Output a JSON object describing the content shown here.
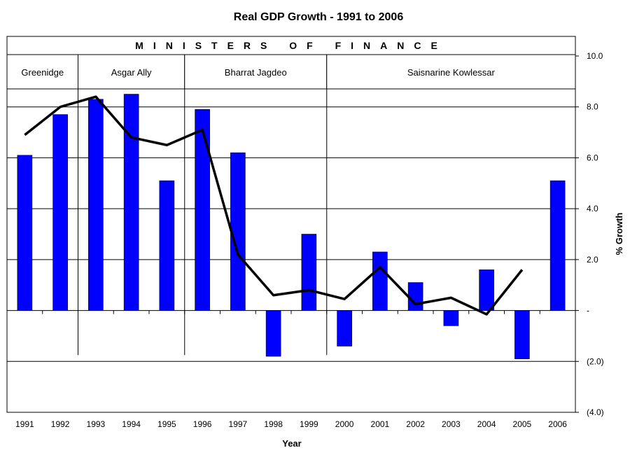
{
  "chart_data": {
    "type": "bar",
    "title": "Real GDP Growth - 1991 to 2006",
    "xlabel": "Year",
    "ylabel": "% Growth",
    "banner": "MINISTERS OF FINANCE",
    "categories": [
      "1991",
      "1992",
      "1993",
      "1994",
      "1995",
      "1996",
      "1997",
      "1998",
      "1999",
      "2000",
      "2001",
      "2002",
      "2003",
      "2004",
      "2005",
      "2006"
    ],
    "series": [
      {
        "type": "bar",
        "color": "#0000FF",
        "values": [
          6.1,
          7.7,
          8.3,
          8.5,
          5.1,
          7.9,
          6.2,
          -1.8,
          3.0,
          -1.4,
          2.3,
          1.1,
          -0.6,
          1.6,
          -1.9,
          5.1
        ]
      },
      {
        "type": "line",
        "color": "#000000",
        "values": [
          6.9,
          8.0,
          8.4,
          6.8,
          6.5,
          7.1,
          2.2,
          0.6,
          0.8,
          0.45,
          1.7,
          0.25,
          0.5,
          -0.15,
          1.6,
          null
        ]
      }
    ],
    "ylim": [
      -4,
      10
    ],
    "y_ticks": [
      {
        "value": 10,
        "label": "10.0"
      },
      {
        "value": 8,
        "label": "8.0"
      },
      {
        "value": 6,
        "label": "6.0"
      },
      {
        "value": 4,
        "label": "4.0"
      },
      {
        "value": 2,
        "label": "2.0"
      },
      {
        "value": 0,
        "label": "-"
      },
      {
        "value": -2,
        "label": "(2.0)"
      },
      {
        "value": -4,
        "label": "(4.0)"
      }
    ],
    "y_axis_side": "right",
    "grid": true,
    "ministers": [
      {
        "name": "Greenidge",
        "from_year": "1991",
        "to_year": "1992"
      },
      {
        "name": "Asgar Ally",
        "from_year": "1993",
        "to_year": "1995"
      },
      {
        "name": "Bharrat Jagdeo",
        "from_year": "1996",
        "to_year": "1999"
      },
      {
        "name": "Saisnarine Kowlessar",
        "from_year": "2000",
        "to_year": "2006"
      }
    ]
  }
}
